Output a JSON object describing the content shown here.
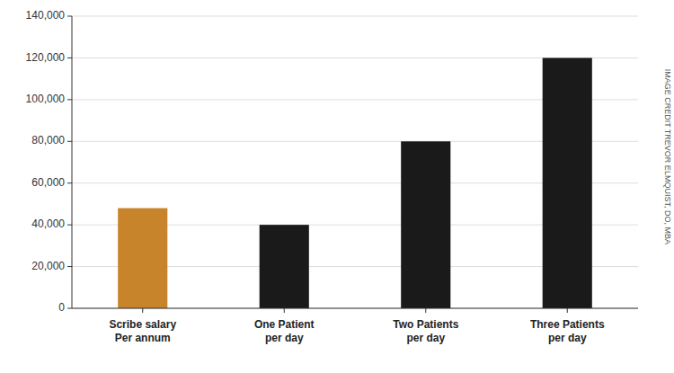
{
  "chart_data": {
    "type": "bar",
    "categories": [
      "Scribe salary\nPer annum",
      "One Patient\nper day",
      "Two Patients\nper day",
      "Three Patients\nper day"
    ],
    "values": [
      48000,
      40000,
      80000,
      120000
    ],
    "colors": [
      "#C8842A",
      "#1a1a1a",
      "#1a1a1a",
      "#1a1a1a"
    ],
    "ylim": [
      0,
      140000
    ],
    "yticks": [
      0,
      {
        "value": 20000,
        "label": "20,000"
      },
      {
        "value": 40000,
        "label": "40,000"
      },
      {
        "value": 60000,
        "label": "60,000"
      },
      {
        "value": 80000,
        "label": "80,000"
      },
      {
        "value": 100000,
        "label": "100,000"
      },
      {
        "value": 120000,
        "label": "120,000"
      },
      {
        "value": 140000,
        "label": "140,000"
      }
    ],
    "grid": true,
    "annotations": [
      "IMAGE CREDIT TREVOR ELMQUIST, DO, MBA"
    ]
  }
}
